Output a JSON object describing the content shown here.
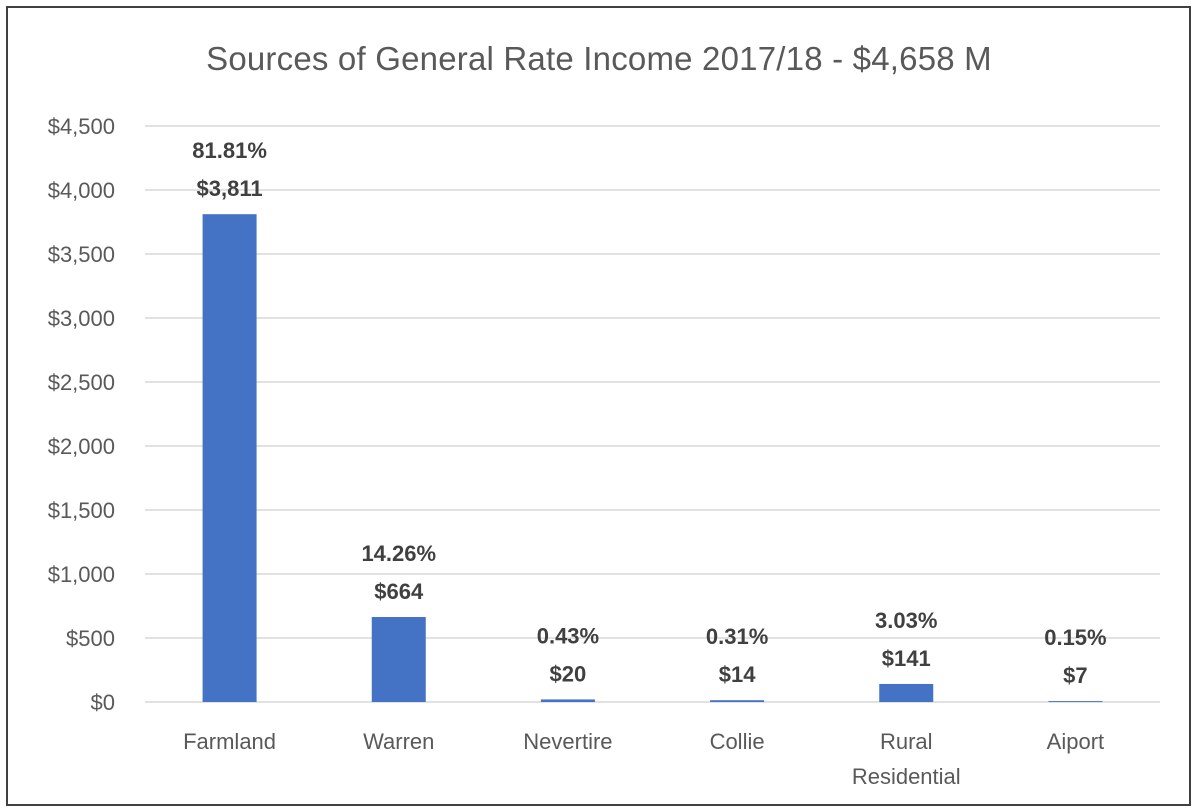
{
  "chart_data": {
    "type": "bar",
    "title": "Sources of General Rate Income 2017/18 - $4,658 M",
    "xlabel": "",
    "ylabel": "",
    "categories": [
      "Farmland",
      "Warren",
      "Nevertire",
      "Collie",
      "Rural Residential",
      "Aiport"
    ],
    "category_lines": [
      [
        "Farmland"
      ],
      [
        "Warren"
      ],
      [
        "Nevertire"
      ],
      [
        "Collie"
      ],
      [
        "Rural",
        "Residential"
      ],
      [
        "Aiport"
      ]
    ],
    "values": [
      3811,
      664,
      20,
      14,
      141,
      7
    ],
    "percent_labels": [
      "81.81%",
      "14.26%",
      "0.43%",
      "0.31%",
      "3.03%",
      "0.15%"
    ],
    "value_labels": [
      "$3,811",
      "$664",
      "$20",
      "$14",
      "$141",
      "$7"
    ],
    "ylim": [
      0,
      4500
    ],
    "yticks": [
      0,
      500,
      1000,
      1500,
      2000,
      2500,
      3000,
      3500,
      4000,
      4500
    ],
    "ytick_labels": [
      "$0",
      "$500",
      "$1,000",
      "$1,500",
      "$2,000",
      "$2,500",
      "$3,000",
      "$3,500",
      "$4,000",
      "$4,500"
    ],
    "grid": true,
    "legend": "none",
    "colors": {
      "bar": "#4472C4",
      "grid": "#D9D9D9",
      "text": "#595959",
      "label": "#404040",
      "frame": "#404040"
    }
  }
}
